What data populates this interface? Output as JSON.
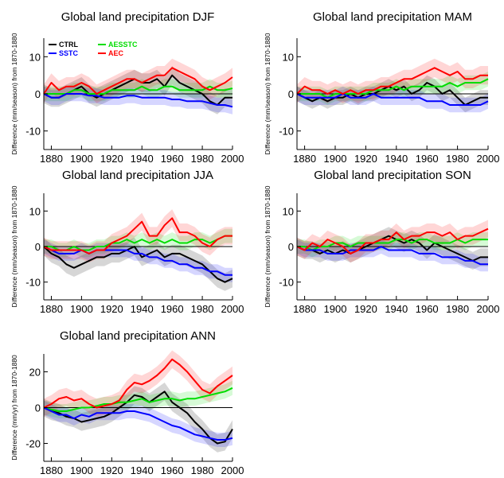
{
  "chart_data": [
    {
      "type": "line",
      "title": "Global land precipitation DJF",
      "ylabel": "Difference (mm/season) from 1870-1880",
      "xlim": [
        1875,
        2000
      ],
      "ylim": [
        -15,
        15
      ],
      "xticks": [
        1880,
        1900,
        1920,
        1940,
        1960,
        1980,
        2000
      ],
      "yticks": [
        -10,
        0,
        10
      ],
      "zero_line": true,
      "shaded_uncertainty": true,
      "legend": {
        "placement": "top-left",
        "entries": [
          {
            "name": "CTRL",
            "color": "#000000"
          },
          {
            "name": "AESSTC",
            "color": "#00dd00"
          },
          {
            "name": "SSTC",
            "color": "#0000ff"
          },
          {
            "name": "AEC",
            "color": "#ff0000"
          }
        ]
      },
      "x": [
        1875,
        1880,
        1885,
        1890,
        1895,
        1900,
        1905,
        1910,
        1915,
        1920,
        1925,
        1930,
        1935,
        1940,
        1945,
        1950,
        1955,
        1960,
        1965,
        1970,
        1975,
        1980,
        1985,
        1990,
        1995,
        2000
      ],
      "series": [
        {
          "name": "CTRL",
          "color": "#000000",
          "band": 2.5,
          "values": [
            0,
            -1,
            -1,
            0,
            1,
            2,
            0,
            -1,
            0,
            1,
            2,
            3,
            4,
            3,
            3,
            4,
            2,
            5,
            3,
            2,
            1,
            0,
            -2,
            -3,
            -1,
            -1
          ]
        },
        {
          "name": "AESSTC",
          "color": "#00dd00",
          "band": 2,
          "values": [
            0,
            0,
            0,
            0,
            1,
            1,
            0,
            0,
            0,
            1,
            1,
            1,
            1,
            2,
            1,
            1,
            2,
            2,
            1,
            1,
            1,
            1,
            2,
            1,
            1,
            1.5
          ]
        },
        {
          "name": "SSTC",
          "color": "#0000ff",
          "band": 2,
          "values": [
            0,
            -1,
            -1,
            0,
            0,
            0,
            -0.5,
            -0.5,
            -1,
            -1,
            -1,
            -0.5,
            -0.5,
            -1,
            -1,
            -1,
            -1,
            -1.5,
            -1.5,
            -2,
            -2,
            -2,
            -2.5,
            -3,
            -3,
            -3.5
          ]
        },
        {
          "name": "AEC",
          "color": "#ff0000",
          "band": 2.5,
          "values": [
            0,
            3,
            1,
            2,
            2,
            3,
            2,
            0,
            1,
            2,
            3,
            4,
            4,
            3,
            4,
            5,
            5,
            7,
            6,
            5,
            4,
            2,
            1,
            2,
            3,
            4.5
          ]
        }
      ]
    },
    {
      "type": "line",
      "title": "Global land precipitation MAM",
      "ylabel": "Difference (mm/season) from 1870-1880",
      "xlim": [
        1875,
        2000
      ],
      "ylim": [
        -15,
        15
      ],
      "xticks": [
        1880,
        1900,
        1920,
        1940,
        1960,
        1980,
        2000
      ],
      "yticks": [
        -10,
        0,
        10
      ],
      "zero_line": true,
      "shaded_uncertainty": true,
      "x": [
        1875,
        1880,
        1885,
        1890,
        1895,
        1900,
        1905,
        1910,
        1915,
        1920,
        1925,
        1930,
        1935,
        1940,
        1945,
        1950,
        1955,
        1960,
        1965,
        1970,
        1975,
        1980,
        1985,
        1990,
        1995,
        2000
      ],
      "series": [
        {
          "name": "CTRL",
          "color": "#000000",
          "band": 2,
          "values": [
            0,
            -1,
            -2,
            -1,
            -2,
            -1,
            -1,
            0,
            -1,
            0,
            0,
            1,
            2,
            1,
            2,
            0,
            1,
            3,
            2,
            0,
            1,
            -1,
            -3,
            -2,
            -1,
            -1
          ]
        },
        {
          "name": "AESSTC",
          "color": "#00dd00",
          "band": 2,
          "values": [
            0,
            0,
            0,
            0,
            -1,
            0,
            0,
            0,
            0,
            0,
            1,
            1,
            1,
            2,
            1,
            2,
            2,
            2,
            2,
            2,
            3,
            2,
            3,
            3,
            3,
            4
          ]
        },
        {
          "name": "SSTC",
          "color": "#0000ff",
          "band": 2,
          "values": [
            0,
            -1,
            -1,
            -1,
            -1,
            -1,
            0,
            -1,
            -1,
            -1,
            0,
            -1,
            -1,
            -1,
            -1,
            -1,
            -1,
            -2,
            -2,
            -2,
            -3,
            -3,
            -3,
            -3,
            -3,
            -2
          ]
        },
        {
          "name": "AEC",
          "color": "#ff0000",
          "band": 2.5,
          "values": [
            0,
            2,
            1,
            1,
            0,
            1,
            0,
            1,
            0,
            1,
            1,
            2,
            2,
            3,
            4,
            4,
            5,
            6,
            7,
            6,
            5,
            6,
            4,
            4,
            5,
            5
          ]
        }
      ]
    },
    {
      "type": "line",
      "title": "Global land precipitation JJA",
      "ylabel": "Difference (mm/season) from 1870-1880",
      "xlim": [
        1875,
        2000
      ],
      "ylim": [
        -15,
        15
      ],
      "xticks": [
        1880,
        1900,
        1920,
        1940,
        1960,
        1980,
        2000
      ],
      "yticks": [
        -10,
        0,
        10
      ],
      "zero_line": true,
      "shaded_uncertainty": true,
      "x": [
        1875,
        1880,
        1885,
        1890,
        1895,
        1900,
        1905,
        1910,
        1915,
        1920,
        1925,
        1930,
        1935,
        1940,
        1945,
        1950,
        1955,
        1960,
        1965,
        1970,
        1975,
        1980,
        1985,
        1990,
        1995,
        2000
      ],
      "series": [
        {
          "name": "CTRL",
          "color": "#000000",
          "band": 2.5,
          "values": [
            0,
            -2,
            -3,
            -5,
            -6,
            -5,
            -4,
            -3,
            -3,
            -2,
            -2,
            -1,
            0,
            -3,
            -2,
            -1,
            -3,
            -2,
            -2,
            -3,
            -4,
            -5,
            -7,
            -9,
            -10,
            -9
          ]
        },
        {
          "name": "AESSTC",
          "color": "#00dd00",
          "band": 2,
          "values": [
            0,
            0,
            -1,
            -1,
            0,
            -1,
            -1,
            0,
            0,
            1,
            1,
            2,
            1,
            2,
            1,
            2,
            1,
            2,
            1,
            1,
            2,
            2,
            1,
            2,
            3,
            3
          ]
        },
        {
          "name": "SSTC",
          "color": "#0000ff",
          "band": 2,
          "values": [
            0,
            -1,
            -2,
            -2,
            -2,
            -1,
            -2,
            -1,
            -1,
            -1,
            -1,
            -1,
            -2,
            -2,
            -3,
            -3,
            -4,
            -4,
            -5,
            -5,
            -6,
            -6,
            -7,
            -7,
            -8,
            -8
          ]
        },
        {
          "name": "AEC",
          "color": "#ff0000",
          "band": 2.5,
          "values": [
            0,
            -1,
            -1,
            -1,
            -1,
            -1,
            -2,
            -1,
            -1,
            1,
            2,
            3,
            5,
            7,
            3,
            3,
            6,
            8,
            4,
            4,
            3,
            1,
            0,
            2,
            3,
            3
          ]
        }
      ]
    },
    {
      "type": "line",
      "title": "Global land precipitation SON",
      "ylabel": "Difference (mm/season) from 1870-1880",
      "xlim": [
        1875,
        2000
      ],
      "ylim": [
        -15,
        15
      ],
      "xticks": [
        1880,
        1900,
        1920,
        1940,
        1960,
        1980,
        2000
      ],
      "yticks": [
        -10,
        0,
        10
      ],
      "zero_line": true,
      "shaded_uncertainty": true,
      "x": [
        1875,
        1880,
        1885,
        1890,
        1895,
        1900,
        1905,
        1910,
        1915,
        1920,
        1925,
        1930,
        1935,
        1940,
        1945,
        1950,
        1955,
        1960,
        1965,
        1970,
        1975,
        1980,
        1985,
        1990,
        1995,
        2000
      ],
      "series": [
        {
          "name": "CTRL",
          "color": "#000000",
          "band": 2.5,
          "values": [
            0,
            -1,
            -1,
            -2,
            -1,
            -2,
            -1,
            -2,
            -1,
            0,
            1,
            2,
            3,
            2,
            1,
            2,
            1,
            -1,
            1,
            0,
            -1,
            -2,
            -3,
            -4,
            -3,
            -3
          ]
        },
        {
          "name": "AESSTC",
          "color": "#00dd00",
          "band": 2,
          "values": [
            0,
            0,
            -1,
            0,
            0,
            1,
            1,
            0,
            1,
            1,
            1,
            1,
            1,
            2,
            2,
            1,
            2,
            2,
            1,
            1,
            1,
            2,
            1,
            2,
            2,
            2
          ]
        },
        {
          "name": "SSTC",
          "color": "#0000ff",
          "band": 2,
          "values": [
            0,
            -1,
            -1,
            -1,
            -2,
            -2,
            -2,
            -1,
            -1,
            -1,
            -1,
            0,
            -1,
            -1,
            -1,
            -1,
            -2,
            -2,
            -2,
            -3,
            -3,
            -3,
            -4,
            -4,
            -5,
            -5
          ]
        },
        {
          "name": "AEC",
          "color": "#ff0000",
          "band": 2.5,
          "values": [
            0,
            -1,
            1,
            0,
            2,
            1,
            0,
            -2,
            -1,
            1,
            1,
            2,
            2,
            4,
            2,
            3,
            3,
            4,
            4,
            3,
            4,
            2,
            3,
            3,
            4,
            5
          ]
        }
      ]
    },
    {
      "type": "line",
      "title": "Global land precipitation ANN",
      "ylabel": "Difference (mm/yr) from 1870-1880",
      "xlim": [
        1875,
        2000
      ],
      "ylim": [
        -30,
        30
      ],
      "xticks": [
        1880,
        1900,
        1920,
        1940,
        1960,
        1980,
        2000
      ],
      "yticks": [
        -20,
        0,
        20
      ],
      "zero_line": true,
      "shaded_uncertainty": true,
      "x": [
        1875,
        1880,
        1885,
        1890,
        1895,
        1900,
        1905,
        1910,
        1915,
        1920,
        1925,
        1930,
        1935,
        1940,
        1945,
        1950,
        1955,
        1960,
        1965,
        1970,
        1975,
        1980,
        1985,
        1990,
        1995,
        2000
      ],
      "series": [
        {
          "name": "CTRL",
          "color": "#000000",
          "band": 5,
          "values": [
            0,
            -2,
            -3,
            -5,
            -6,
            -8,
            -7,
            -6,
            -5,
            -3,
            0,
            3,
            7,
            6,
            3,
            6,
            9,
            3,
            0,
            -3,
            -8,
            -12,
            -17,
            -20,
            -19,
            -12
          ]
        },
        {
          "name": "AESSTC",
          "color": "#00dd00",
          "band": 4,
          "values": [
            0,
            -1,
            -2,
            -2,
            -1,
            0,
            0,
            1,
            2,
            2,
            3,
            3,
            4,
            5,
            3,
            4,
            5,
            5,
            4,
            5,
            5,
            6,
            7,
            8,
            9,
            11
          ]
        },
        {
          "name": "SSTC",
          "color": "#0000ff",
          "band": 4,
          "values": [
            0,
            -2,
            -4,
            -4,
            -6,
            -4,
            -5,
            -3,
            -3,
            -3,
            -3,
            -2,
            -2,
            -3,
            -4,
            -6,
            -8,
            -10,
            -11,
            -13,
            -15,
            -16,
            -17,
            -18,
            -18,
            -17
          ]
        },
        {
          "name": "AEC",
          "color": "#ff0000",
          "band": 5,
          "values": [
            0,
            2,
            5,
            6,
            4,
            5,
            2,
            0,
            1,
            2,
            4,
            10,
            14,
            13,
            15,
            18,
            22,
            27,
            24,
            20,
            15,
            10,
            8,
            12,
            15,
            18
          ]
        }
      ]
    }
  ]
}
